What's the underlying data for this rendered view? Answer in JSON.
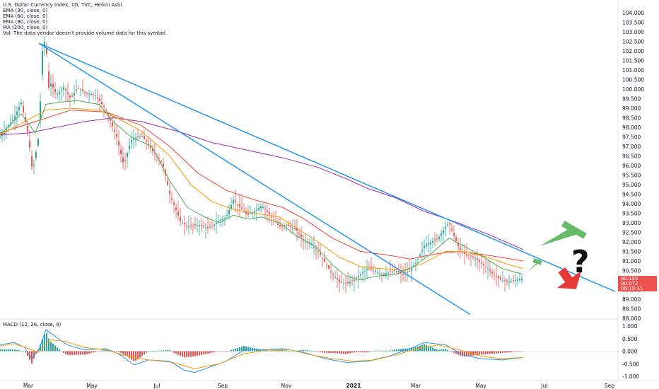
{
  "legend": {
    "title": "U.S. Dollar Currency Index, 1D, TVC, Heikin Ashi",
    "ema30": "EMA (30, close, 0)",
    "ema60": "EMA (60, close, 0)",
    "ema90": "EMA (90, close, 0)",
    "ma200": "MA (200, close, 0)",
    "vol": "Vol: The data vendor doesn't provide volume data for this symbol."
  },
  "macd_legend": "MACD (12, 26, close, 9)",
  "price_box": {
    "line1": "90.155",
    "line2": "90.072",
    "line3": "06:15:11"
  },
  "colors": {
    "up": "#26a69a",
    "down": "#ef5350",
    "ema30": "#4caf50",
    "ema60": "#ff9800",
    "ema90": "#f44336",
    "ma200": "#9c27b0",
    "trend": "#2196f3",
    "macd": "#2196f3",
    "signal": "#ff9800",
    "arrow_up": "#66bb6a",
    "arrow_down": "#e53935"
  },
  "annotation": "?",
  "chart_data": {
    "type": "candlestick",
    "price_axis": {
      "ticks": [
        "104.000",
        "103.500",
        "103.000",
        "102.500",
        "102.000",
        "101.500",
        "101.000",
        "100.500",
        "100.000",
        "99.500",
        "99.000",
        "98.500",
        "98.000",
        "97.500",
        "97.000",
        "96.500",
        "96.000",
        "95.500",
        "95.000",
        "94.500",
        "94.000",
        "93.500",
        "93.000",
        "92.500",
        "92.000",
        "91.500",
        "91.000",
        "90.500",
        "90.000",
        "89.500",
        "89.000",
        "88.500",
        "88.000"
      ],
      "ylim": [
        88.0,
        104.0
      ]
    },
    "macd_axis": {
      "ticks": [
        "1.000",
        "0.500",
        "0.000",
        "-0.500",
        "-1.000"
      ],
      "ylim": [
        -1.0,
        1.0
      ]
    },
    "x_axis": {
      "ticks": [
        "Mar",
        "May",
        "Jul",
        "Sep",
        "Nov",
        "2021",
        "Mar",
        "May",
        "Jul",
        "Sep"
      ]
    },
    "x_index_range": [
      0,
      420
    ],
    "price_series": [
      [
        0,
        97.5
      ],
      [
        20,
        98.5
      ],
      [
        30,
        99.3
      ],
      [
        40,
        97.6
      ],
      [
        46,
        95.6
      ],
      [
        55,
        97.6
      ],
      [
        60,
        102.0
      ],
      [
        65,
        102.8
      ],
      [
        68,
        100.0
      ],
      [
        72,
        100.3
      ],
      [
        80,
        99.7
      ],
      [
        90,
        100.1
      ],
      [
        100,
        99.5
      ],
      [
        110,
        100.1
      ],
      [
        120,
        99.8
      ],
      [
        135,
        99.7
      ],
      [
        150,
        98.9
      ],
      [
        165,
        97.5
      ],
      [
        175,
        96.0
      ],
      [
        185,
        97.3
      ],
      [
        200,
        97.6
      ],
      [
        215,
        96.8
      ],
      [
        230,
        96.1
      ],
      [
        240,
        94.5
      ],
      [
        255,
        93.1
      ],
      [
        265,
        92.8
      ],
      [
        280,
        92.9
      ],
      [
        295,
        92.7
      ],
      [
        310,
        93.1
      ],
      [
        320,
        93.3
      ],
      [
        330,
        94.2
      ],
      [
        340,
        93.8
      ],
      [
        350,
        93.4
      ],
      [
        360,
        93.6
      ],
      [
        370,
        93.9
      ],
      [
        380,
        93.5
      ],
      [
        395,
        92.8
      ],
      [
        405,
        92.9
      ],
      [
        420,
        92.6
      ],
      [
        430,
        92.0
      ],
      [
        440,
        91.9
      ],
      [
        450,
        91.5
      ],
      [
        460,
        90.9
      ],
      [
        470,
        90.3
      ],
      [
        480,
        89.9
      ],
      [
        490,
        89.8
      ],
      [
        500,
        90.0
      ],
      [
        510,
        90.3
      ],
      [
        520,
        90.6
      ],
      [
        530,
        90.5
      ],
      [
        540,
        90.3
      ],
      [
        550,
        90.4
      ],
      [
        560,
        90.5
      ],
      [
        570,
        90.3
      ],
      [
        580,
        90.5
      ],
      [
        590,
        91.0
      ],
      [
        600,
        91.8
      ],
      [
        610,
        92.0
      ],
      [
        620,
        92.2
      ],
      [
        630,
        92.8
      ],
      [
        635,
        93.0
      ],
      [
        640,
        92.5
      ],
      [
        650,
        91.6
      ],
      [
        660,
        91.3
      ],
      [
        670,
        91.2
      ],
      [
        680,
        90.9
      ],
      [
        690,
        90.6
      ],
      [
        700,
        90.2
      ],
      [
        710,
        90.0
      ],
      [
        720,
        89.9
      ],
      [
        730,
        90.0
      ],
      [
        740,
        90.1
      ]
    ],
    "ema30": [
      [
        0,
        97.6
      ],
      [
        30,
        98.7
      ],
      [
        50,
        97.7
      ],
      [
        65,
        99.2
      ],
      [
        80,
        99.3
      ],
      [
        110,
        99.4
      ],
      [
        140,
        99.2
      ],
      [
        160,
        98.3
      ],
      [
        185,
        97.5
      ],
      [
        215,
        97.0
      ],
      [
        240,
        95.2
      ],
      [
        265,
        93.8
      ],
      [
        290,
        93.3
      ],
      [
        310,
        93.0
      ],
      [
        330,
        93.4
      ],
      [
        350,
        93.2
      ],
      [
        370,
        93.3
      ],
      [
        395,
        93.0
      ],
      [
        420,
        92.3
      ],
      [
        445,
        91.8
      ],
      [
        470,
        90.8
      ],
      [
        490,
        90.2
      ],
      [
        510,
        90.0
      ],
      [
        530,
        90.2
      ],
      [
        560,
        90.3
      ],
      [
        585,
        90.7
      ],
      [
        610,
        91.4
      ],
      [
        635,
        92.2
      ],
      [
        655,
        91.8
      ],
      [
        680,
        91.3
      ],
      [
        710,
        90.6
      ],
      [
        740,
        90.3
      ]
    ],
    "ema60": [
      [
        0,
        97.6
      ],
      [
        40,
        98.4
      ],
      [
        65,
        98.9
      ],
      [
        100,
        99.0
      ],
      [
        140,
        98.9
      ],
      [
        165,
        98.5
      ],
      [
        200,
        97.8
      ],
      [
        240,
        96.5
      ],
      [
        270,
        95.0
      ],
      [
        300,
        94.1
      ],
      [
        330,
        93.7
      ],
      [
        360,
        93.5
      ],
      [
        395,
        93.3
      ],
      [
        420,
        92.7
      ],
      [
        450,
        92.0
      ],
      [
        480,
        91.2
      ],
      [
        510,
        90.7
      ],
      [
        540,
        90.6
      ],
      [
        570,
        90.5
      ],
      [
        600,
        90.9
      ],
      [
        630,
        91.5
      ],
      [
        655,
        91.5
      ],
      [
        690,
        91.2
      ],
      [
        720,
        90.8
      ],
      [
        740,
        90.6
      ]
    ],
    "ema90": [
      [
        0,
        97.7
      ],
      [
        50,
        98.3
      ],
      [
        100,
        98.9
      ],
      [
        150,
        98.8
      ],
      [
        200,
        98.1
      ],
      [
        240,
        97.0
      ],
      [
        280,
        95.6
      ],
      [
        320,
        94.7
      ],
      [
        360,
        94.2
      ],
      [
        400,
        93.8
      ],
      [
        430,
        93.2
      ],
      [
        470,
        92.2
      ],
      [
        510,
        91.5
      ],
      [
        550,
        91.3
      ],
      [
        580,
        91.1
      ],
      [
        620,
        91.4
      ],
      [
        650,
        91.5
      ],
      [
        690,
        91.3
      ],
      [
        740,
        91.0
      ]
    ],
    "ma200": [
      [
        0,
        97.6
      ],
      [
        40,
        97.7
      ],
      [
        80,
        98.0
      ],
      [
        120,
        98.3
      ],
      [
        160,
        98.5
      ],
      [
        200,
        98.3
      ],
      [
        250,
        97.8
      ],
      [
        300,
        97.2
      ],
      [
        350,
        96.8
      ],
      [
        400,
        96.4
      ],
      [
        450,
        95.9
      ],
      [
        490,
        95.3
      ],
      [
        520,
        94.8
      ],
      [
        560,
        94.3
      ],
      [
        600,
        93.6
      ],
      [
        640,
        93.1
      ],
      [
        690,
        92.4
      ],
      [
        740,
        91.6
      ]
    ],
    "trendlines": [
      {
        "from": [
          55,
          102.4
        ],
        "to": [
          870,
          89.4
        ]
      },
      {
        "from": [
          55,
          102.4
        ],
        "to": [
          665,
          88.2
        ]
      }
    ],
    "macd_line": [
      [
        0,
        0.25
      ],
      [
        20,
        0.35
      ],
      [
        35,
        0.15
      ],
      [
        45,
        -0.3
      ],
      [
        55,
        0.05
      ],
      [
        65,
        0.85
      ],
      [
        75,
        0.65
      ],
      [
        95,
        0.25
      ],
      [
        120,
        0.05
      ],
      [
        150,
        0.1
      ],
      [
        170,
        -0.15
      ],
      [
        190,
        -0.55
      ],
      [
        210,
        -0.35
      ],
      [
        240,
        -0.4
      ],
      [
        260,
        -0.75
      ],
      [
        275,
        -0.85
      ],
      [
        300,
        -0.6
      ],
      [
        320,
        -0.4
      ],
      [
        345,
        0.05
      ],
      [
        370,
        0.05
      ],
      [
        400,
        0.1
      ],
      [
        430,
        -0.05
      ],
      [
        460,
        -0.3
      ],
      [
        490,
        -0.45
      ],
      [
        520,
        -0.4
      ],
      [
        550,
        -0.2
      ],
      [
        580,
        0.1
      ],
      [
        600,
        0.35
      ],
      [
        630,
        0.25
      ],
      [
        655,
        -0.15
      ],
      [
        680,
        -0.3
      ],
      [
        710,
        -0.35
      ],
      [
        740,
        -0.25
      ]
    ],
    "signal_line": [
      [
        0,
        0.2
      ],
      [
        20,
        0.3
      ],
      [
        40,
        0.1
      ],
      [
        55,
        -0.05
      ],
      [
        70,
        0.45
      ],
      [
        90,
        0.4
      ],
      [
        120,
        0.15
      ],
      [
        150,
        0.05
      ],
      [
        180,
        -0.2
      ],
      [
        210,
        -0.35
      ],
      [
        245,
        -0.45
      ],
      [
        275,
        -0.7
      ],
      [
        310,
        -0.5
      ],
      [
        345,
        -0.1
      ],
      [
        380,
        0.05
      ],
      [
        410,
        0.05
      ],
      [
        440,
        -0.15
      ],
      [
        470,
        -0.3
      ],
      [
        500,
        -0.4
      ],
      [
        530,
        -0.35
      ],
      [
        560,
        -0.15
      ],
      [
        590,
        0.1
      ],
      [
        620,
        0.25
      ],
      [
        650,
        0.05
      ],
      [
        680,
        -0.2
      ],
      [
        710,
        -0.3
      ],
      [
        740,
        -0.25
      ]
    ]
  }
}
